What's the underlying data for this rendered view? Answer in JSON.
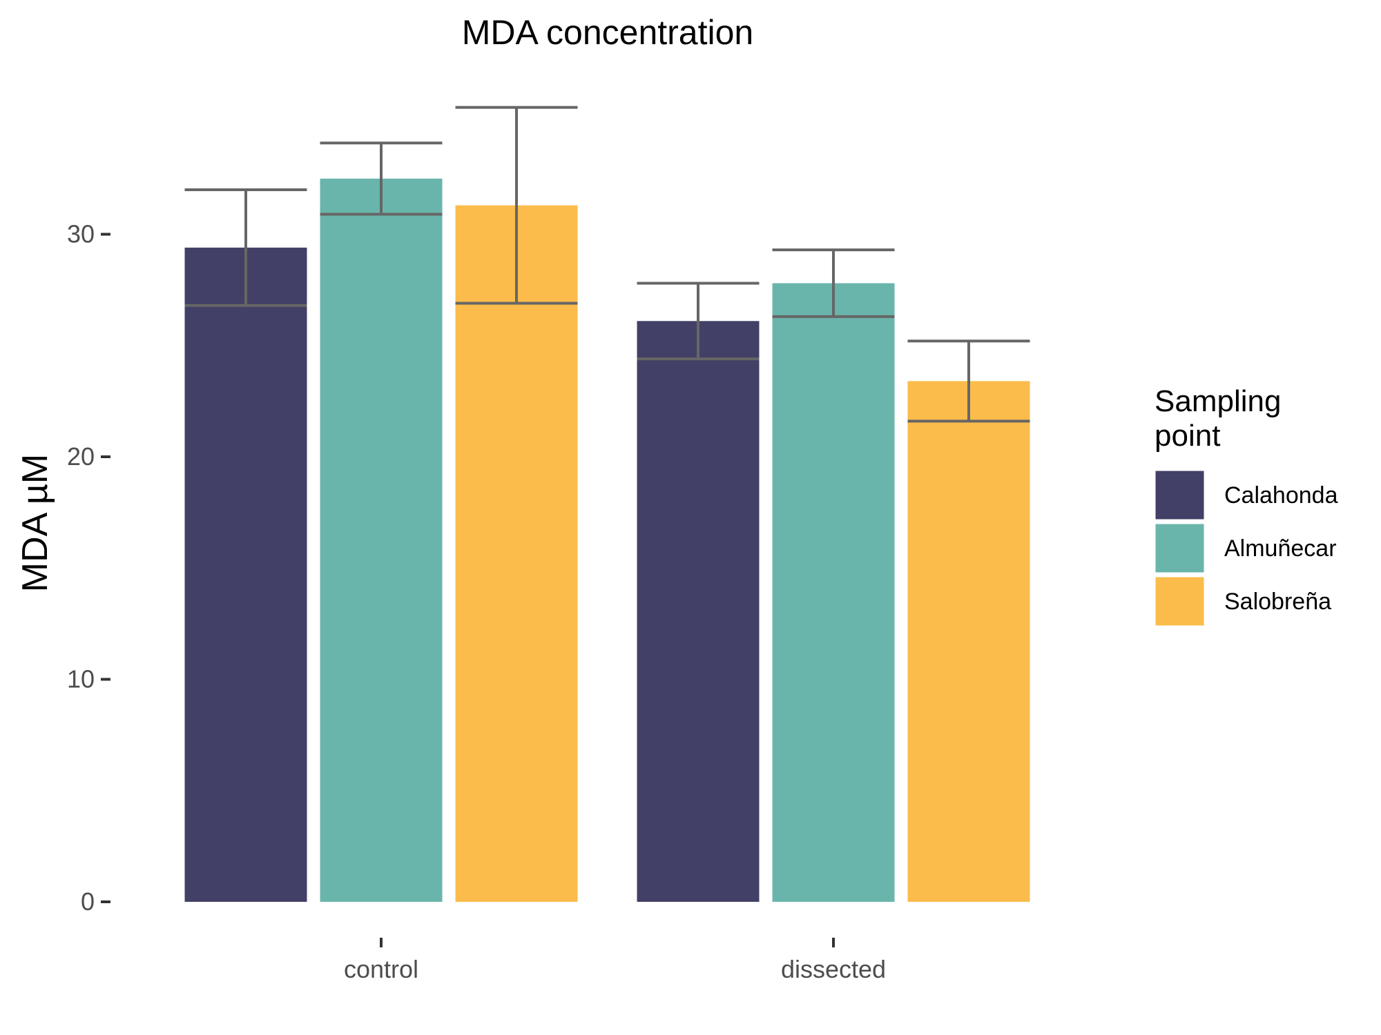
{
  "chart_data": {
    "type": "bar",
    "title": "MDA concentration",
    "xlabel": "",
    "ylabel": "MDA µM",
    "categories": [
      "control",
      "dissected"
    ],
    "series": [
      {
        "name": "Calahonda",
        "color": "#424066",
        "values": [
          29.4,
          26.1
        ],
        "error": [
          2.6,
          1.7
        ]
      },
      {
        "name": "Almuñecar",
        "color": "#6ab5ab",
        "values": [
          32.5,
          27.8
        ],
        "error": [
          1.6,
          1.5
        ]
      },
      {
        "name": "Salobreña",
        "color": "#fbbc4b",
        "values": [
          31.3,
          23.4
        ],
        "error": [
          4.4,
          1.8
        ]
      }
    ],
    "ylim": [
      0,
      36
    ],
    "yticks": [
      0,
      10,
      20,
      30
    ],
    "legend": {
      "title": "Sampling\npoint",
      "position": "right"
    },
    "grid": false
  }
}
